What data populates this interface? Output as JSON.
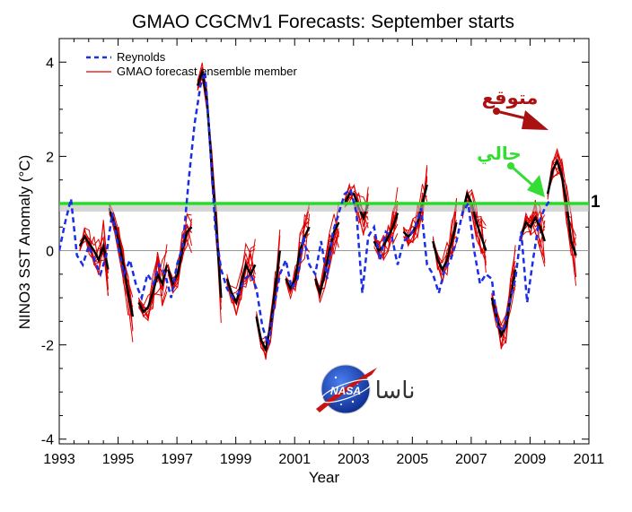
{
  "chart_data": {
    "type": "line",
    "title": "GMAO CGCMv1 Forecasts: September starts",
    "xlabel": "Year",
    "ylabel": "NINO3 SST Anomaly (°C)",
    "xlim": [
      1993,
      2011
    ],
    "ylim": [
      -4.1,
      4.5
    ],
    "xticks": [
      {
        "v": 1993,
        "label": "1993"
      },
      {
        "v": 1995,
        "label": "1995"
      },
      {
        "v": 1997,
        "label": "1997"
      },
      {
        "v": 1999,
        "label": "1999"
      },
      {
        "v": 2001,
        "label": "2001"
      },
      {
        "v": 2003,
        "label": "2003"
      },
      {
        "v": 2005,
        "label": "2005"
      },
      {
        "v": 2007,
        "label": "2007"
      },
      {
        "v": 2009,
        "label": "2009"
      },
      {
        "v": 2011,
        "label": "2011"
      }
    ],
    "yticks": [
      {
        "v": -4,
        "label": "-4"
      },
      {
        "v": -2,
        "label": "-2"
      },
      {
        "v": 0,
        "label": "0"
      },
      {
        "v": 2,
        "label": "2"
      },
      {
        "v": 4,
        "label": "4"
      }
    ],
    "legend": {
      "position": "top-left",
      "entries": [
        {
          "label": "Reynolds",
          "color": "#1a2ee6",
          "style": "dashed"
        },
        {
          "label": "GMAO forecast ensemble member",
          "color": "#e00000",
          "style": "solid"
        }
      ]
    },
    "zero_line": {
      "y": 0,
      "color": "#999999"
    },
    "threshold_line": {
      "y": 1,
      "label": "1",
      "color": "#22dd22"
    },
    "series": [
      {
        "name": "Reynolds",
        "color": "#1a2ee6",
        "style": "dashed",
        "x": [
          1993.0,
          1993.2,
          1993.4,
          1993.6,
          1993.8,
          1994.0,
          1994.2,
          1994.4,
          1994.6,
          1994.8,
          1995.0,
          1995.2,
          1995.4,
          1995.6,
          1995.8,
          1996.0,
          1996.2,
          1996.4,
          1996.6,
          1996.8,
          1997.0,
          1997.2,
          1997.4,
          1997.6,
          1997.8,
          1997.95,
          1998.1,
          1998.3,
          1998.5,
          1998.7,
          1998.9,
          1999.1,
          1999.3,
          1999.5,
          1999.7,
          1999.9,
          2000.1,
          2000.3,
          2000.5,
          2000.7,
          2000.9,
          2001.1,
          2001.3,
          2001.5,
          2001.7,
          2001.9,
          2002.1,
          2002.3,
          2002.5,
          2002.7,
          2002.9,
          2003.1,
          2003.3,
          2003.5,
          2003.7,
          2003.9,
          2004.1,
          2004.3,
          2004.5,
          2004.7,
          2004.9,
          2005.1,
          2005.3,
          2005.5,
          2005.7,
          2005.9,
          2006.1,
          2006.3,
          2006.5,
          2006.7,
          2006.9,
          2007.1,
          2007.3,
          2007.5,
          2007.7,
          2007.9,
          2008.1,
          2008.3,
          2008.5,
          2008.7,
          2008.9,
          2009.1,
          2009.3,
          2009.5,
          2009.7
        ],
        "y": [
          0.0,
          0.6,
          1.1,
          -0.1,
          -0.3,
          0.1,
          -0.2,
          -0.5,
          -0.1,
          0.8,
          0.1,
          -0.5,
          -0.2,
          -0.7,
          -1.0,
          -0.5,
          -0.7,
          -0.3,
          -0.5,
          -1.0,
          -0.3,
          0.1,
          1.5,
          2.7,
          3.5,
          3.8,
          2.5,
          0.5,
          -0.4,
          -0.8,
          -1.0,
          -0.9,
          -0.6,
          -0.5,
          -0.8,
          -1.6,
          -2.0,
          -1.2,
          -0.5,
          -0.2,
          -0.8,
          -0.6,
          0.3,
          -0.3,
          -0.5,
          0.2,
          -0.6,
          0.4,
          0.8,
          1.2,
          1.3,
          0.8,
          -0.9,
          0.3,
          0.5,
          -0.2,
          0.4,
          0.3,
          -0.3,
          0.2,
          0.3,
          0.5,
          0.9,
          -0.3,
          -0.5,
          -0.9,
          -0.4,
          -0.2,
          0.2,
          0.8,
          1.0,
          0.0,
          -0.7,
          -0.5,
          -0.6,
          -1.6,
          -1.7,
          -1.1,
          -0.6,
          0.4,
          -1.1,
          -0.2,
          0.6,
          0.9,
          1.1
        ]
      }
    ],
    "annotations": [
      {
        "text": "متوقع",
        "meaning": "forecast",
        "color": "#aa1111",
        "arrow_to": [
          2009.7,
          2.55
        ]
      },
      {
        "text": "حالي",
        "meaning": "current",
        "color": "#33dd33",
        "arrow_to": [
          2009.55,
          1.15
        ]
      },
      {
        "text": "ناسا",
        "meaning": "NASA",
        "color": "#333333"
      }
    ],
    "logo": {
      "text": "NASA",
      "icon": "nasa-meatball-icon"
    }
  }
}
